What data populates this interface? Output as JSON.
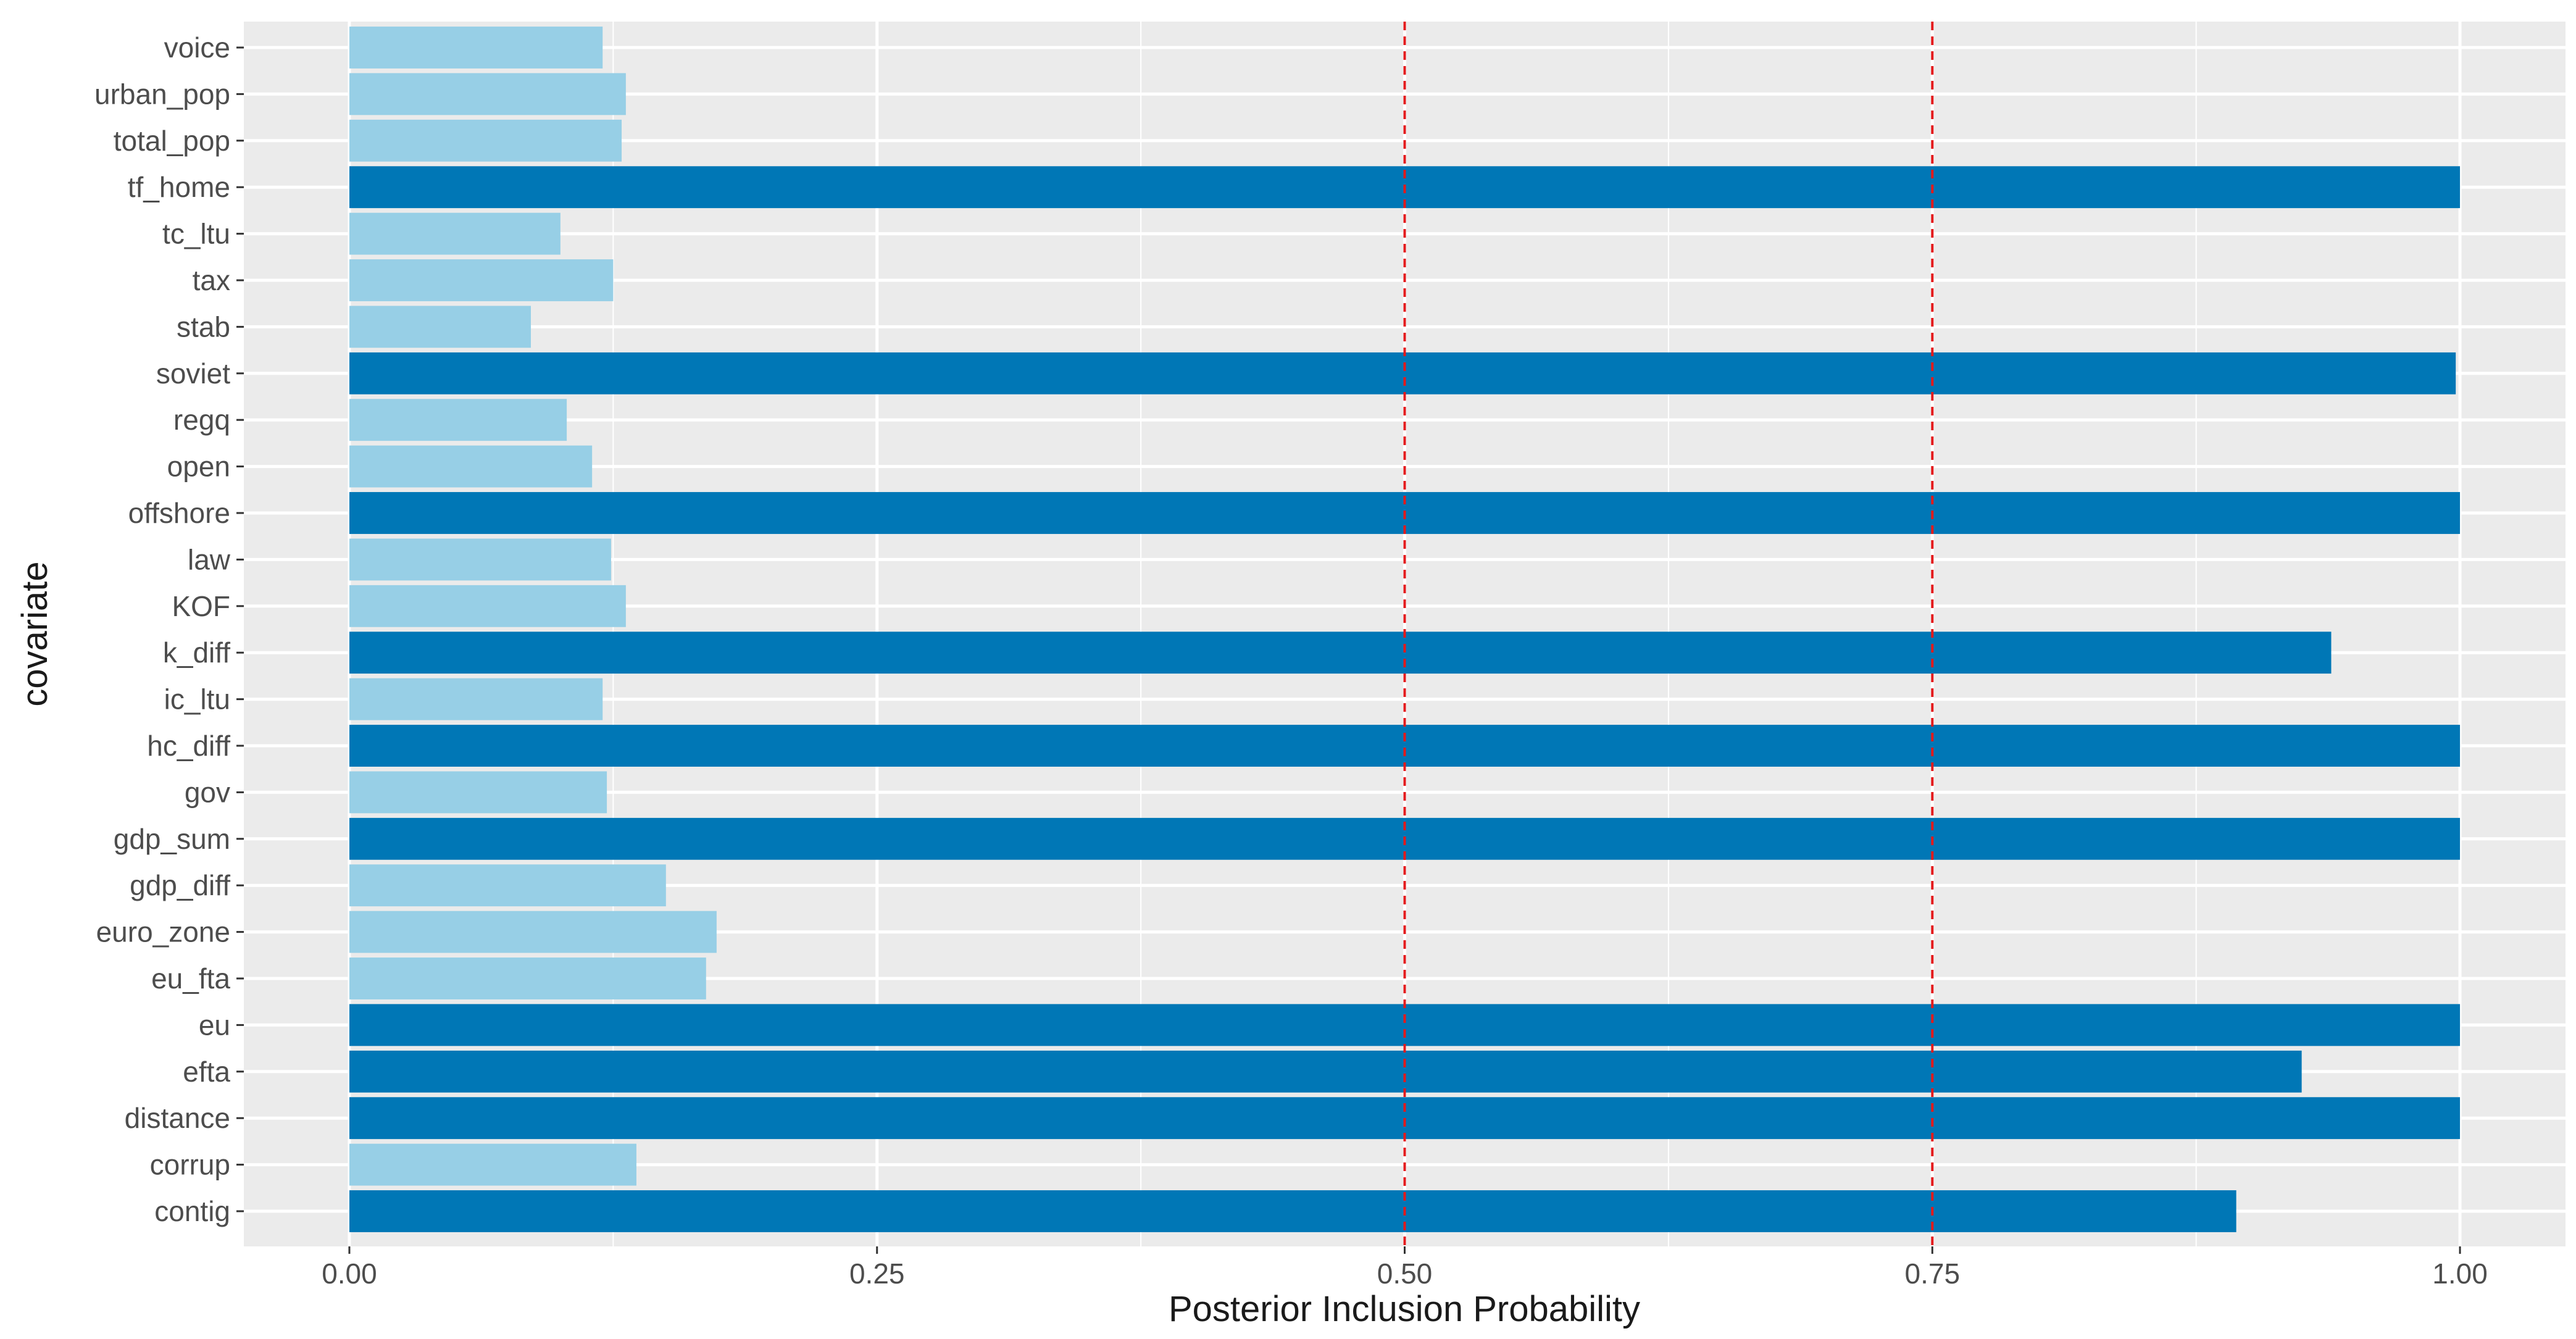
{
  "chart_data": {
    "type": "bar",
    "orientation": "horizontal",
    "xlabel": "Posterior Inclusion Probability",
    "ylabel": "covariate",
    "xlim": [
      -0.05,
      1.05
    ],
    "x_ticks": [
      0.0,
      0.25,
      0.5,
      0.75,
      1.0
    ],
    "x_tick_labels": [
      "0.00",
      "0.25",
      "0.50",
      "0.75",
      "1.00"
    ],
    "reference_lines": [
      0.5,
      0.75
    ],
    "reference_line_color": "#e31a1c",
    "panel_background": "#ebebeb",
    "grid": true,
    "threshold": 0.5,
    "colors": {
      "high": "#0077b6",
      "low": "#97cfe6"
    },
    "categories": [
      "contig",
      "corrup",
      "distance",
      "efta",
      "eu",
      "eu_fta",
      "euro_zone",
      "gdp_diff",
      "gdp_sum",
      "gov",
      "hc_diff",
      "ic_ltu",
      "k_diff",
      "KOF",
      "law",
      "offshore",
      "open",
      "regq",
      "soviet",
      "stab",
      "tax",
      "tc_ltu",
      "tf_home",
      "total_pop",
      "urban_pop",
      "voice"
    ],
    "values": [
      0.894,
      0.136,
      1.0,
      0.925,
      1.0,
      0.169,
      0.174,
      0.15,
      1.0,
      0.122,
      1.0,
      0.12,
      0.939,
      0.131,
      0.124,
      1.0,
      0.115,
      0.103,
      0.998,
      0.086,
      0.125,
      0.1,
      1.0,
      0.129,
      0.131,
      0.12
    ]
  }
}
